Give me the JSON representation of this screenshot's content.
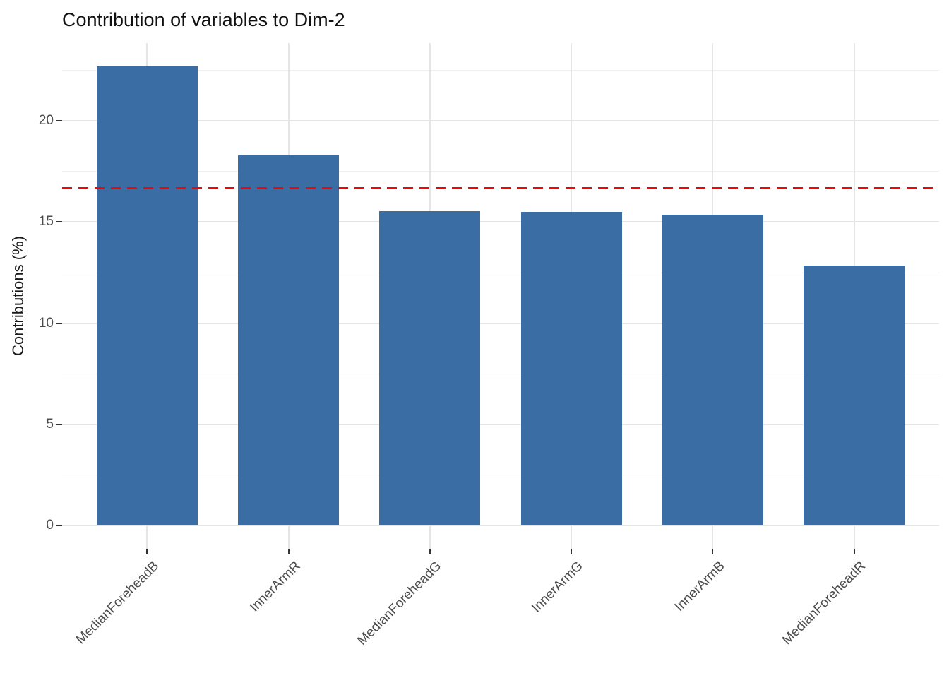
{
  "chart_data": {
    "type": "bar",
    "title": "Contribution of variables to Dim-2",
    "ylabel": "Contributions (%)",
    "xlabel": "",
    "categories": [
      "MedianForeheadB",
      "InnerArmR",
      "MedianForeheadG",
      "InnerArmG",
      "InnerArmB",
      "MedianForeheadR"
    ],
    "values": [
      22.7,
      18.3,
      15.55,
      15.5,
      15.35,
      12.85
    ],
    "y_ticks": [
      0,
      5,
      10,
      15,
      20
    ],
    "y_minor_ticks": [
      2.5,
      7.5,
      12.5,
      17.5,
      22.5
    ],
    "ylim": [
      -1.14,
      23.84
    ],
    "bar_color": "#3B6DA5",
    "reference_line": {
      "value": 16.67,
      "color": "#FF0000",
      "style": "dashed"
    },
    "grid": "horizontal major+minor, vertical major at bar centers",
    "legend_position": "none",
    "colors": {
      "background": "#FFFFFF",
      "grid_major": "#E5E5E5",
      "grid_minor": "#F0F0F0",
      "axis_text": "#4D4D4D",
      "title_text": "#111111",
      "tick_mark": "#333333"
    }
  }
}
